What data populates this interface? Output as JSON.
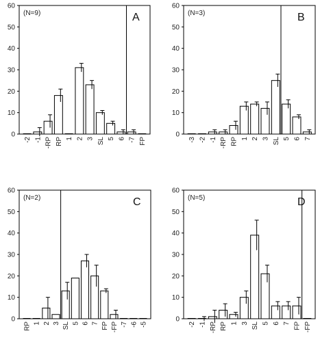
{
  "chart_data": [
    {
      "type": "bar",
      "panel": "A",
      "n_label": "(N=9)",
      "categories": [
        "-2",
        "-1",
        "-RP",
        "RP",
        "1",
        "2",
        "3",
        "SL",
        "5",
        "6",
        "-7",
        "FP"
      ],
      "values": [
        0,
        1,
        6,
        18,
        0,
        31,
        23,
        10,
        5,
        1,
        1,
        0
      ],
      "errors": [
        0,
        2,
        3,
        3,
        0,
        2,
        2,
        1,
        1,
        1,
        1,
        0
      ],
      "vline_after": "6",
      "ylim": [
        0,
        60
      ],
      "yticks": [
        0,
        10,
        20,
        30,
        40,
        50,
        60
      ]
    },
    {
      "type": "bar",
      "panel": "B",
      "n_label": "(N=3)",
      "categories": [
        "-3",
        "-2",
        "-1",
        "-RP",
        "RP",
        "1",
        "2",
        "3",
        "SL",
        "5",
        "6",
        "7"
      ],
      "values": [
        0,
        0,
        1,
        1,
        4,
        13,
        14,
        12,
        25,
        14,
        8,
        1
      ],
      "errors": [
        0,
        0,
        1,
        1,
        2,
        2,
        1,
        3,
        3,
        2,
        1,
        1
      ],
      "vline_after": "SL",
      "ylim": [
        0,
        60
      ],
      "yticks": [
        0,
        10,
        20,
        30,
        40,
        50,
        60
      ]
    },
    {
      "type": "bar",
      "panel": "C",
      "n_label": "(N=2)",
      "categories": [
        "RP",
        "1",
        "2",
        "3",
        "SL",
        "5",
        "6",
        "7",
        "FP",
        "-FP",
        "-7",
        "-6",
        "-5"
      ],
      "values": [
        0,
        0,
        5,
        2,
        13,
        19,
        27,
        20,
        13,
        2,
        0,
        0,
        0
      ],
      "errors": [
        0,
        0,
        5,
        0,
        4,
        0,
        3,
        5,
        1,
        2,
        0,
        0,
        0
      ],
      "vline_before": "SL",
      "ylim": [
        0,
        60
      ],
      "yticks": [
        0,
        10,
        20,
        30,
        40,
        50,
        60
      ]
    },
    {
      "type": "bar",
      "panel": "D",
      "n_label": "(N=5)",
      "categories": [
        "-2",
        "-1",
        "-RP",
        "RP",
        "1",
        "3",
        "SL",
        "5",
        "6",
        "7",
        "FP",
        "-FP"
      ],
      "values": [
        0,
        0,
        1,
        4,
        2,
        10,
        39,
        21,
        6,
        6,
        6,
        0
      ],
      "errors": [
        0,
        1,
        3,
        3,
        1,
        3,
        7,
        4,
        2,
        2,
        4,
        0
      ],
      "vline_after": "FP",
      "ylim": [
        0,
        60
      ],
      "yticks": [
        0,
        10,
        20,
        30,
        40,
        50,
        60
      ]
    }
  ]
}
